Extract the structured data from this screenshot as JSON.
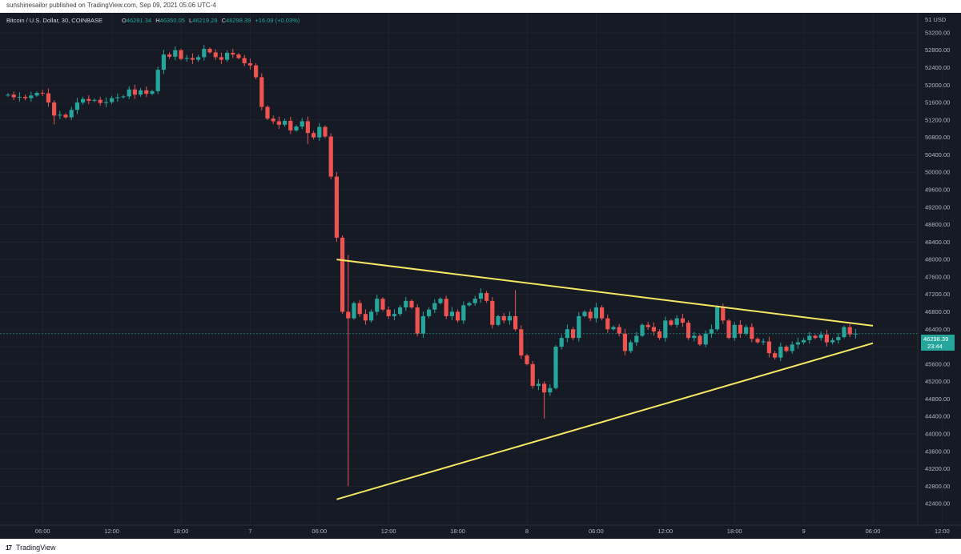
{
  "header": {
    "published_text": "sunshinesailor published on TradingView.com, Sep 09, 2021 05:06 UTC-4"
  },
  "footer": {
    "brand": "TradingView",
    "logo_icon": "tradingview-logo-icon"
  },
  "colors": {
    "background": "#161a25",
    "grid": "#232733",
    "up": "#26a69a",
    "down": "#ef5350",
    "trendline": "#f5e663",
    "axis_text": "#b2b5be"
  },
  "legend": {
    "symbol": "Bitcoin / U.S. Dollar, 30, COINBASE",
    "o_label": "O",
    "o_value": "46281.34",
    "h_label": "H",
    "h_value": "46350.05",
    "l_label": "L",
    "l_value": "46219.28",
    "c_label": "C",
    "c_value": "46298.39",
    "change": "+16.09 (+0.03%)"
  },
  "price_label": {
    "price": "46298.39",
    "countdown": "23:44"
  },
  "chart_data": {
    "type": "candlestick",
    "title": "Bitcoin / U.S. Dollar, 30, COINBASE",
    "interval_minutes": 30,
    "first_candle_time": "2021-09-06 03:00",
    "ylim": [
      42200,
      53400
    ],
    "grid": true,
    "y_ticks": [
      "53200.00",
      "52800.00",
      "52400.00",
      "52000.00",
      "51600.00",
      "51200.00",
      "50800.00",
      "50400.00",
      "50000.00",
      "49600.00",
      "49200.00",
      "48800.00",
      "48400.00",
      "48000.00",
      "47600.00",
      "47200.00",
      "46800.00",
      "46400.00",
      "46000.00",
      "45600.00",
      "45200.00",
      "44800.00",
      "44400.00",
      "44000.00",
      "43600.00",
      "43200.00",
      "42800.00",
      "42400.00"
    ],
    "y_top_label": "51 USD",
    "x_ticks": [
      {
        "label": "06:00",
        "time": "2021-09-06 06:00"
      },
      {
        "label": "12:00",
        "time": "2021-09-06 12:00"
      },
      {
        "label": "18:00",
        "time": "2021-09-06 18:00"
      },
      {
        "label": "7",
        "time": "2021-09-07 00:00"
      },
      {
        "label": "06:00",
        "time": "2021-09-07 06:00"
      },
      {
        "label": "12:00",
        "time": "2021-09-07 12:00"
      },
      {
        "label": "18:00",
        "time": "2021-09-07 18:00"
      },
      {
        "label": "8",
        "time": "2021-09-08 00:00"
      },
      {
        "label": "06:00",
        "time": "2021-09-08 06:00"
      },
      {
        "label": "12:00",
        "time": "2021-09-08 12:00"
      },
      {
        "label": "18:00",
        "time": "2021-09-08 18:00"
      },
      {
        "label": "9",
        "time": "2021-09-09 00:00"
      },
      {
        "label": "06:00",
        "time": "2021-09-09 06:00"
      },
      {
        "label": "12:00",
        "time": "2021-09-09 12:00"
      }
    ],
    "close_prices": [
      51780,
      51720,
      51730,
      51700,
      51760,
      51820,
      51810,
      51600,
      51300,
      51320,
      51260,
      51430,
      51600,
      51680,
      51640,
      51660,
      51590,
      51610,
      51700,
      51720,
      51740,
      51900,
      51780,
      51880,
      51800,
      51860,
      52350,
      52700,
      52650,
      52800,
      52600,
      52620,
      52580,
      52640,
      52830,
      52750,
      52640,
      52580,
      52740,
      52700,
      52620,
      52500,
      52450,
      52180,
      51500,
      51230,
      51170,
      51090,
      51180,
      50960,
      51050,
      51170,
      50900,
      50800,
      51040,
      50820,
      49900,
      48500,
      46800,
      46650,
      47000,
      46750,
      46600,
      46800,
      47100,
      46850,
      46700,
      46750,
      46900,
      47050,
      46900,
      46300,
      46700,
      46850,
      47000,
      47100,
      46700,
      46800,
      46600,
      46950,
      47000,
      47100,
      47230,
      47050,
      46500,
      46700,
      46600,
      46700,
      46400,
      45800,
      45600,
      45100,
      45150,
      44950,
      45050,
      46000,
      46200,
      46400,
      46200,
      46700,
      46800,
      46650,
      46900,
      46650,
      46400,
      46450,
      46300,
      45900,
      46100,
      46250,
      46500,
      46450,
      46350,
      46200,
      46600,
      46500,
      46650,
      46550,
      46200,
      46250,
      46050,
      46300,
      46400,
      46900,
      46600,
      46200,
      46500,
      46300,
      46450,
      46180,
      46100,
      46120,
      45850,
      45750,
      46000,
      45900,
      46050,
      46100,
      46150,
      46250,
      46200,
      46280,
      46100,
      46150,
      46220,
      46450,
      46281,
      46298
    ],
    "wick_extremes": [
      {
        "candle": 8,
        "low": 51100
      },
      {
        "candle": 52,
        "low": 50650
      },
      {
        "candle": 59,
        "high": 48100,
        "low": 42800
      },
      {
        "candle": 88,
        "high": 47300
      },
      {
        "candle": 93,
        "low": 44350
      }
    ],
    "trendlines": [
      {
        "name": "upper",
        "from": {
          "time": "2021-09-07 07:30",
          "price": 48000
        },
        "to": {
          "time": "2021-09-09 06:00",
          "price": 46480
        }
      },
      {
        "name": "lower",
        "from": {
          "time": "2021-09-07 07:30",
          "price": 42500
        },
        "to": {
          "time": "2021-09-09 06:00",
          "price": 46080
        }
      }
    ]
  }
}
